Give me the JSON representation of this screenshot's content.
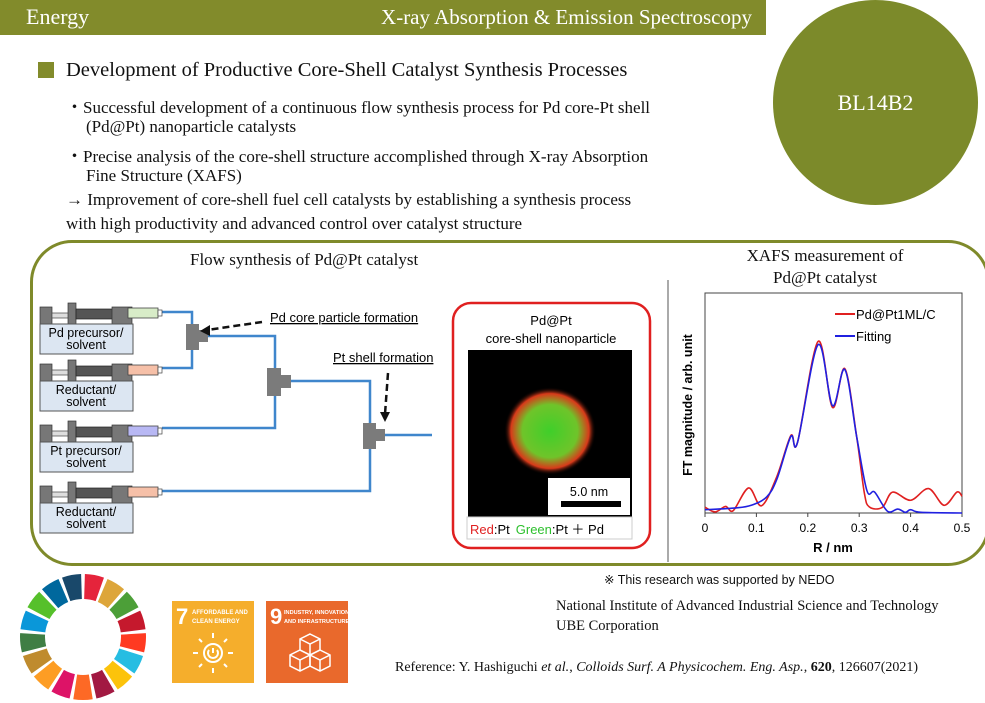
{
  "header": {
    "category": "Energy",
    "field": "X-ray Absorption &  Emission Spectroscopy"
  },
  "beamline": "BL14B2",
  "title": "Development of Productive Core-Shell Catalyst Synthesis Processes",
  "bullets": [
    "・Successful development of a continuous flow synthesis process for Pd core-Pt shell",
    "(Pd@Pt) nanoparticle catalysts",
    "・Precise analysis of the core-shell structure accomplished through X-ray Absorption",
    "Fine Structure (XAFS)",
    "→ Improvement of core-shell fuel cell catalysts by establishing a synthesis process",
    "with high productivity and advanced control over catalyst structure"
  ],
  "flow": {
    "title": "Flow synthesis of Pd@Pt catalyst",
    "syringes": [
      {
        "line1": "Pd precursor/",
        "line2": "solvent",
        "color": "#d8ecc8"
      },
      {
        "line1": "Reductant/",
        "line2": "solvent",
        "color": "#f6c0a8"
      },
      {
        "line1": "Pt precursor/",
        "line2": "solvent",
        "color": "#b8b8f4"
      },
      {
        "line1": "Reductant/",
        "line2": "solvent",
        "color": "#f6c0a8"
      }
    ],
    "label_core": "Pd core particle formation",
    "label_shell": "Pt shell formation",
    "particle_title1": "Pd@Pt",
    "particle_title2": "core-shell nanoparticle",
    "scale_bar": "5.0 nm",
    "legend_red": "Red",
    "legend_red_val": ":Pt",
    "legend_green": "Green",
    "legend_green_val": ":Pt ＋ Pd"
  },
  "chart_data": {
    "type": "line",
    "title": "XAFS measurement of Pd@Pt catalyst",
    "title_line1": "XAFS measurement of",
    "title_line2": "Pd@Pt catalyst",
    "xlabel": "R / nm",
    "ylabel": "FT magnitude / arb. unit",
    "xlim": [
      0,
      0.5
    ],
    "ylim": [
      0,
      1
    ],
    "xticks": [
      "0",
      "0.1",
      "0.2",
      "0.3",
      "0.4",
      "0.5"
    ],
    "legend_position": "top-right",
    "series": [
      {
        "name": "Pd@Pt1ML/C",
        "color": "#e02020",
        "x": [
          0,
          0.02,
          0.04,
          0.055,
          0.085,
          0.11,
          0.14,
          0.167,
          0.18,
          0.22,
          0.248,
          0.272,
          0.295,
          0.31,
          0.32,
          0.345,
          0.365,
          0.4,
          0.435,
          0.465,
          0.49,
          0.5
        ],
        "y": [
          0.026,
          0.005,
          0.03,
          0.011,
          0.114,
          0.033,
          0.167,
          0.352,
          0.321,
          0.78,
          0.48,
          0.656,
          0.348,
          0.091,
          0.027,
          0.026,
          0.095,
          0.058,
          0.111,
          0.035,
          0.095,
          0.076
        ]
      },
      {
        "name": "Fitting",
        "color": "#2020e0",
        "x": [
          0,
          0.06,
          0.09,
          0.12,
          0.14,
          0.167,
          0.18,
          0.22,
          0.248,
          0.272,
          0.295,
          0.315,
          0.33,
          0.355,
          0.375,
          0.39,
          0.4,
          0.42,
          0.5
        ],
        "y": [
          0.015,
          0.023,
          0.035,
          0.073,
          0.155,
          0.348,
          0.321,
          0.765,
          0.488,
          0.652,
          0.348,
          0.102,
          0.095,
          0.008,
          0.018,
          0.003,
          0.015,
          0.003,
          0.0
        ]
      }
    ]
  },
  "sdg": {
    "wheel_colors": [
      "#E5243B",
      "#DDA63A",
      "#4C9F38",
      "#C5192D",
      "#FF3A21",
      "#26BDE2",
      "#FCC30B",
      "#A21942",
      "#FD6925",
      "#DD1367",
      "#FD9D24",
      "#BF8B2E",
      "#3F7E44",
      "#0A97D9",
      "#56C02B",
      "#00689D",
      "#19486A"
    ],
    "goal7": {
      "num": "7",
      "line1": "AFFORDABLE AND",
      "line2": "CLEAN ENERGY",
      "color": "#f5ae2c"
    },
    "goal9": {
      "num": "9",
      "line1": "INDUSTRY, INNOVATION",
      "line2": "AND INFRASTRUCTURE",
      "color": "#e9692c"
    }
  },
  "footer": {
    "support": "※ This research was supported by NEDO",
    "org1": "National Institute of Advanced Industrial Science and Technology",
    "org2": "UBE Corporation",
    "ref_prefix": "Reference: Y. Hashiguchi ",
    "ref_etal": "et al.",
    "ref_journal": "Colloids Surf. A Physicochem. Eng. Asp.",
    "ref_vol": "620",
    "ref_rest": ", 126607(2021)"
  }
}
